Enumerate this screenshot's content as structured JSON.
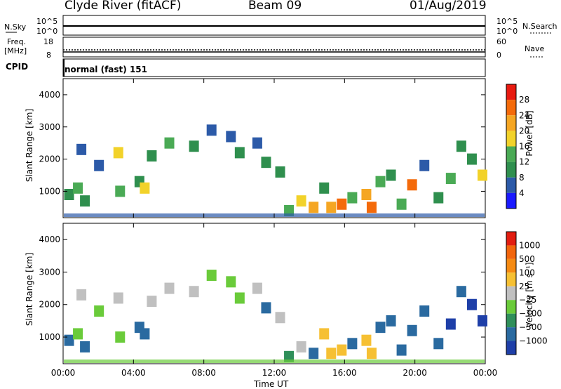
{
  "header": {
    "site": "Clyde River (fitACF)",
    "beam": "Beam 09",
    "date": "01/Aug/2019"
  },
  "top_panels": {
    "nsky_label": "N.Sky",
    "nsearch_label": "N.Search",
    "nsky_ticks": [
      "10^5",
      "10^0"
    ],
    "freq_label_1": "Freq.",
    "freq_label_2": "[MHz]",
    "freq_ticks": [
      "18",
      "8"
    ],
    "nave_label": "Nave",
    "nave_ticks": [
      "60",
      "0"
    ],
    "cpid_label": "CPID",
    "cpid_value": "normal (fast) 151"
  },
  "colors": {
    "power_scale": [
      "#1a1aff",
      "#2c5aa8",
      "#2f8f4e",
      "#4aaa55",
      "#f2d22a",
      "#f5a623",
      "#f46a0a",
      "#e81a10"
    ],
    "velocity_scale": [
      "#1e3fa8",
      "#2a6aa0",
      "#2f8f5a",
      "#6acb3a",
      "#c0c0c0",
      "#f6c033",
      "#f58a12",
      "#f2650c",
      "#e21d10"
    ]
  },
  "chart_data": [
    {
      "type": "heatmap",
      "name": "power",
      "xlabel": "",
      "ylabel": "Slant Range [km]",
      "x_range_hours": [
        0,
        24
      ],
      "y_range_km": [
        180,
        4500
      ],
      "y_ticks": [
        "1000",
        "2000",
        "3000",
        "4000"
      ],
      "x_ticks": [
        "00:00",
        "04:00",
        "08:00",
        "12:00",
        "16:00",
        "20:00",
        "00:00"
      ],
      "colorbar_label": "Power [dB]",
      "colorbar_ticks": [
        "28",
        "24",
        "20",
        "16",
        "12",
        "8",
        "4"
      ],
      "cells": [
        {
          "t": 0.3,
          "r": 900,
          "v": 10
        },
        {
          "t": 0.8,
          "r": 1100,
          "v": 14
        },
        {
          "t": 1.0,
          "r": 2300,
          "v": 6
        },
        {
          "t": 1.2,
          "r": 700,
          "v": 12
        },
        {
          "t": 2.0,
          "r": 1800,
          "v": 8
        },
        {
          "t": 3.1,
          "r": 2200,
          "v": 18
        },
        {
          "t": 3.2,
          "r": 1000,
          "v": 14
        },
        {
          "t": 4.3,
          "r": 1300,
          "v": 12
        },
        {
          "t": 4.6,
          "r": 1100,
          "v": 20
        },
        {
          "t": 5.0,
          "r": 2100,
          "v": 10
        },
        {
          "t": 6.0,
          "r": 2500,
          "v": 14
        },
        {
          "t": 7.4,
          "r": 2400,
          "v": 12
        },
        {
          "t": 8.4,
          "r": 2900,
          "v": 8
        },
        {
          "t": 9.5,
          "r": 2700,
          "v": 6
        },
        {
          "t": 10.0,
          "r": 2200,
          "v": 10
        },
        {
          "t": 11.0,
          "r": 2500,
          "v": 8
        },
        {
          "t": 11.5,
          "r": 1900,
          "v": 12
        },
        {
          "t": 12.3,
          "r": 1600,
          "v": 10
        },
        {
          "t": 12.8,
          "r": 400,
          "v": 16
        },
        {
          "t": 13.5,
          "r": 700,
          "v": 18
        },
        {
          "t": 14.2,
          "r": 500,
          "v": 24
        },
        {
          "t": 14.8,
          "r": 1100,
          "v": 12
        },
        {
          "t": 15.2,
          "r": 500,
          "v": 22
        },
        {
          "t": 15.8,
          "r": 600,
          "v": 26
        },
        {
          "t": 16.4,
          "r": 800,
          "v": 16
        },
        {
          "t": 17.2,
          "r": 900,
          "v": 24
        },
        {
          "t": 17.5,
          "r": 500,
          "v": 28
        },
        {
          "t": 18.0,
          "r": 1300,
          "v": 14
        },
        {
          "t": 18.6,
          "r": 1500,
          "v": 10
        },
        {
          "t": 19.2,
          "r": 600,
          "v": 16
        },
        {
          "t": 19.8,
          "r": 1200,
          "v": 28
        },
        {
          "t": 20.5,
          "r": 1800,
          "v": 8
        },
        {
          "t": 21.3,
          "r": 800,
          "v": 12
        },
        {
          "t": 22.0,
          "r": 1400,
          "v": 14
        },
        {
          "t": 22.6,
          "r": 2400,
          "v": 10
        },
        {
          "t": 23.2,
          "r": 2000,
          "v": 12
        },
        {
          "t": 23.8,
          "r": 1500,
          "v": 18
        }
      ]
    },
    {
      "type": "heatmap",
      "name": "velocity",
      "xlabel": "Time UT",
      "ylabel": "Slant Range [km]",
      "x_range_hours": [
        0,
        24
      ],
      "y_range_km": [
        180,
        4500
      ],
      "y_ticks": [
        "1000",
        "2000",
        "3000",
        "4000"
      ],
      "x_ticks": [
        "00:00",
        "04:00",
        "08:00",
        "12:00",
        "16:00",
        "20:00",
        "00:00"
      ],
      "colorbar_label": "Velocity [m s⁻¹]",
      "colorbar_ticks": [
        "1000",
        "500",
        "100",
        "25",
        "−25",
        "−100",
        "−500",
        "−1000"
      ],
      "cells": [
        {
          "t": 0.3,
          "r": 900,
          "v": 300
        },
        {
          "t": 0.8,
          "r": 1100,
          "v": 20
        },
        {
          "t": 1.0,
          "r": 2300,
          "v": -50
        },
        {
          "t": 1.2,
          "r": 700,
          "v": 200
        },
        {
          "t": 2.0,
          "r": 1800,
          "v": 10
        },
        {
          "t": 3.1,
          "r": 2200,
          "v": -80
        },
        {
          "t": 3.2,
          "r": 1000,
          "v": 10
        },
        {
          "t": 4.3,
          "r": 1300,
          "v": 400
        },
        {
          "t": 4.6,
          "r": 1100,
          "v": 200
        },
        {
          "t": 5.0,
          "r": 2100,
          "v": -30
        },
        {
          "t": 6.0,
          "r": 2500,
          "v": -60
        },
        {
          "t": 7.4,
          "r": 2400,
          "v": -40
        },
        {
          "t": 8.4,
          "r": 2900,
          "v": 10
        },
        {
          "t": 9.5,
          "r": 2700,
          "v": 20
        },
        {
          "t": 10.0,
          "r": 2200,
          "v": 10
        },
        {
          "t": 11.0,
          "r": 2500,
          "v": -80
        },
        {
          "t": 11.5,
          "r": 1900,
          "v": 300
        },
        {
          "t": 12.3,
          "r": 1600,
          "v": -30
        },
        {
          "t": 12.8,
          "r": 400,
          "v": 80
        },
        {
          "t": 13.5,
          "r": 700,
          "v": -60
        },
        {
          "t": 14.2,
          "r": 500,
          "v": 150
        },
        {
          "t": 14.8,
          "r": 1100,
          "v": -200
        },
        {
          "t": 15.2,
          "r": 500,
          "v": -400
        },
        {
          "t": 15.8,
          "r": 600,
          "v": -300
        },
        {
          "t": 16.4,
          "r": 800,
          "v": 200
        },
        {
          "t": 17.2,
          "r": 900,
          "v": -250
        },
        {
          "t": 17.5,
          "r": 500,
          "v": -400
        },
        {
          "t": 18.0,
          "r": 1300,
          "v": 300
        },
        {
          "t": 18.6,
          "r": 1500,
          "v": 100
        },
        {
          "t": 19.2,
          "r": 600,
          "v": 150
        },
        {
          "t": 19.8,
          "r": 1200,
          "v": 400
        },
        {
          "t": 20.5,
          "r": 1800,
          "v": 250
        },
        {
          "t": 21.3,
          "r": 800,
          "v": 300
        },
        {
          "t": 22.0,
          "r": 1400,
          "v": 500
        },
        {
          "t": 22.6,
          "r": 2400,
          "v": 400
        },
        {
          "t": 23.2,
          "r": 2000,
          "v": 600
        },
        {
          "t": 23.8,
          "r": 1500,
          "v": 800
        }
      ]
    }
  ]
}
